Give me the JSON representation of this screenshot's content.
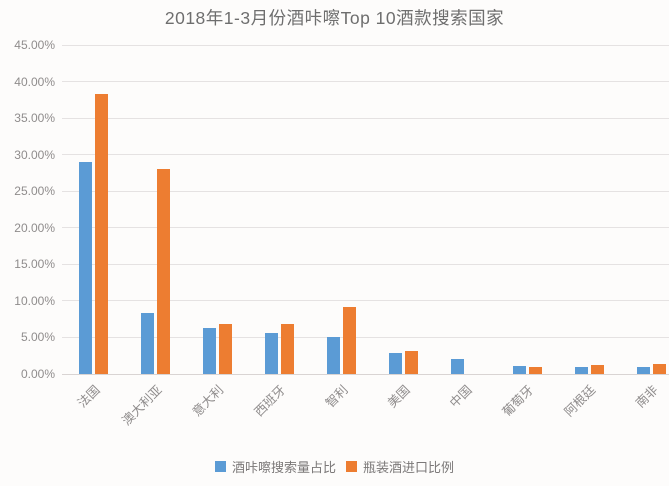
{
  "chart_data": {
    "type": "bar",
    "title": "2018年1-3月份酒咔嚓Top 10酒款搜索国家",
    "categories": [
      "法国",
      "澳大利亚",
      "意大利",
      "西班牙",
      "智利",
      "美国",
      "中国",
      "葡萄牙",
      "阿根廷",
      "南非"
    ],
    "series": [
      {
        "name": "酒咔嚓搜索量占比",
        "color": "#5B9BD5",
        "values": [
          29.0,
          8.4,
          6.3,
          5.6,
          5.0,
          2.9,
          2.0,
          1.1,
          1.0,
          0.9
        ]
      },
      {
        "name": "瓶装酒进口比例",
        "color": "#ED7D31",
        "values": [
          38.3,
          28.1,
          6.9,
          6.9,
          9.2,
          3.2,
          0.0,
          0.9,
          1.2,
          1.4
        ]
      }
    ],
    "xlabel": "",
    "ylabel": "",
    "ylim": [
      0,
      45
    ],
    "yticks": [
      0,
      5,
      10,
      15,
      20,
      25,
      30,
      35,
      40,
      45
    ],
    "ytick_labels": [
      "0.00%",
      "5.00%",
      "10.00%",
      "15.00%",
      "20.00%",
      "25.00%",
      "30.00%",
      "35.00%",
      "40.00%",
      "45.00%"
    ],
    "grid": true,
    "legend_position": "bottom"
  }
}
